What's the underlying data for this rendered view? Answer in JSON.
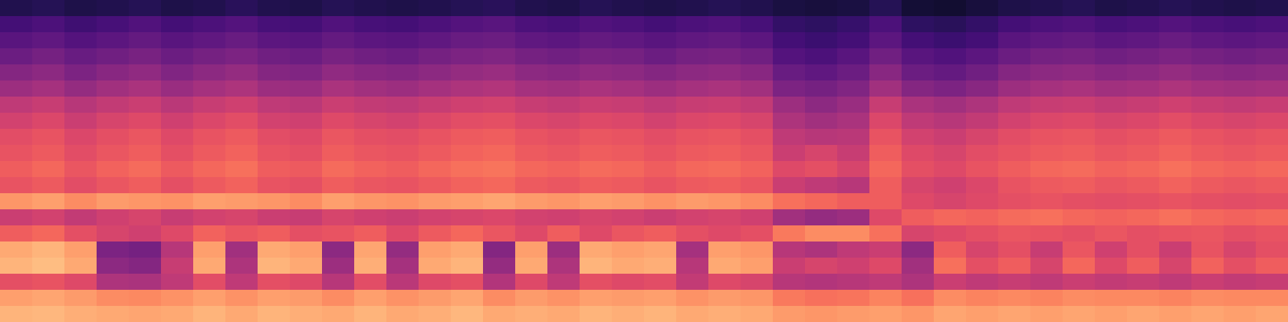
{
  "chart_data": {
    "type": "heatmap",
    "tick_labels": false,
    "zlim": [
      0,
      100
    ],
    "cells": [
      [
        14,
        15,
        13,
        14,
        15,
        13,
        14,
        16,
        14,
        13,
        15,
        14,
        13,
        14,
        15,
        16,
        14,
        13,
        15,
        14,
        13,
        14,
        15,
        14,
        12,
        11,
        12,
        15,
        10,
        9,
        11,
        13,
        14,
        15,
        13,
        14,
        15,
        14,
        13,
        14
      ],
      [
        22,
        24,
        21,
        23,
        25,
        22,
        24,
        26,
        23,
        22,
        25,
        23,
        22,
        24,
        26,
        27,
        24,
        23,
        25,
        24,
        22,
        24,
        25,
        23,
        18,
        17,
        19,
        24,
        17,
        16,
        18,
        22,
        24,
        25,
        23,
        24,
        26,
        24,
        23,
        24
      ],
      [
        27,
        29,
        26,
        28,
        30,
        27,
        29,
        31,
        28,
        27,
        30,
        28,
        27,
        29,
        31,
        32,
        29,
        28,
        30,
        29,
        27,
        29,
        30,
        28,
        22,
        20,
        22,
        28,
        22,
        20,
        22,
        27,
        29,
        30,
        28,
        29,
        31,
        29,
        28,
        29
      ],
      [
        32,
        34,
        31,
        33,
        35,
        32,
        34,
        36,
        33,
        32,
        35,
        33,
        32,
        34,
        36,
        37,
        34,
        33,
        35,
        34,
        32,
        34,
        35,
        33,
        26,
        24,
        27,
        33,
        27,
        25,
        28,
        32,
        34,
        35,
        33,
        34,
        36,
        34,
        33,
        34
      ],
      [
        38,
        40,
        36,
        39,
        41,
        37,
        40,
        42,
        38,
        37,
        41,
        39,
        38,
        40,
        42,
        43,
        40,
        39,
        41,
        40,
        38,
        40,
        41,
        39,
        31,
        29,
        32,
        39,
        32,
        30,
        33,
        38,
        40,
        41,
        39,
        40,
        42,
        40,
        39,
        40
      ],
      [
        44,
        46,
        42,
        45,
        47,
        43,
        46,
        48,
        44,
        43,
        47,
        45,
        44,
        46,
        48,
        49,
        46,
        45,
        47,
        46,
        44,
        46,
        47,
        45,
        36,
        34,
        37,
        45,
        38,
        36,
        39,
        44,
        46,
        47,
        45,
        46,
        48,
        46,
        45,
        46
      ],
      [
        52,
        54,
        50,
        53,
        55,
        51,
        54,
        56,
        52,
        51,
        55,
        53,
        52,
        54,
        56,
        57,
        54,
        53,
        55,
        54,
        52,
        54,
        55,
        53,
        44,
        40,
        43,
        54,
        47,
        45,
        48,
        52,
        54,
        55,
        53,
        54,
        56,
        54,
        53,
        54
      ],
      [
        57,
        59,
        55,
        58,
        60,
        56,
        59,
        61,
        57,
        56,
        60,
        58,
        57,
        59,
        61,
        62,
        59,
        58,
        60,
        59,
        57,
        59,
        60,
        58,
        48,
        45,
        47,
        59,
        52,
        50,
        53,
        57,
        59,
        60,
        58,
        59,
        61,
        59,
        58,
        59
      ],
      [
        61,
        63,
        59,
        62,
        64,
        60,
        63,
        65,
        61,
        60,
        64,
        62,
        61,
        63,
        65,
        66,
        63,
        62,
        64,
        63,
        61,
        63,
        64,
        62,
        52,
        50,
        51,
        63,
        57,
        55,
        58,
        61,
        63,
        64,
        62,
        63,
        65,
        63,
        62,
        63
      ],
      [
        63,
        65,
        61,
        64,
        66,
        62,
        65,
        67,
        63,
        62,
        66,
        64,
        63,
        65,
        67,
        68,
        65,
        64,
        66,
        65,
        63,
        65,
        66,
        64,
        55,
        58,
        54,
        66,
        60,
        58,
        61,
        63,
        65,
        66,
        64,
        65,
        67,
        65,
        64,
        65
      ],
      [
        66,
        68,
        64,
        67,
        69,
        65,
        68,
        70,
        66,
        65,
        69,
        67,
        66,
        68,
        70,
        71,
        68,
        67,
        69,
        68,
        66,
        68,
        69,
        67,
        60,
        62,
        58,
        68,
        62,
        60,
        63,
        66,
        68,
        69,
        67,
        68,
        70,
        68,
        67,
        68
      ],
      [
        63,
        65,
        61,
        64,
        66,
        62,
        65,
        67,
        63,
        62,
        66,
        64,
        63,
        65,
        67,
        68,
        65,
        64,
        66,
        65,
        63,
        65,
        66,
        64,
        55,
        52,
        50,
        66,
        58,
        56,
        59,
        63,
        65,
        66,
        64,
        65,
        67,
        65,
        64,
        65
      ],
      [
        78,
        80,
        76,
        79,
        78,
        77,
        80,
        79,
        78,
        76,
        80,
        78,
        77,
        79,
        80,
        81,
        79,
        78,
        80,
        79,
        77,
        79,
        78,
        76,
        70,
        68,
        66,
        66,
        60,
        58,
        60,
        62,
        63,
        62,
        61,
        62,
        63,
        62,
        61,
        62
      ],
      [
        55,
        57,
        53,
        56,
        58,
        54,
        57,
        58,
        55,
        54,
        58,
        56,
        55,
        57,
        58,
        59,
        57,
        56,
        58,
        57,
        55,
        57,
        58,
        56,
        45,
        42,
        44,
        60,
        66,
        68,
        67,
        69,
        70,
        68,
        67,
        68,
        70,
        68,
        67,
        68
      ],
      [
        66,
        68,
        62,
        58,
        56,
        60,
        67,
        64,
        66,
        62,
        63,
        66,
        60,
        65,
        68,
        64,
        60,
        66,
        60,
        64,
        66,
        62,
        60,
        62,
        72,
        76,
        76,
        70,
        58,
        60,
        62,
        64,
        63,
        62,
        64,
        62,
        63,
        64,
        62,
        63
      ],
      [
        82,
        84,
        80,
        36,
        34,
        50,
        80,
        45,
        82,
        80,
        40,
        81,
        42,
        80,
        82,
        38,
        80,
        44,
        82,
        80,
        81,
        46,
        80,
        78,
        50,
        48,
        52,
        55,
        40,
        66,
        58,
        62,
        54,
        64,
        56,
        62,
        55,
        63,
        58,
        62
      ],
      [
        84,
        86,
        82,
        40,
        38,
        54,
        82,
        48,
        84,
        82,
        44,
        83,
        46,
        82,
        84,
        42,
        82,
        48,
        84,
        82,
        83,
        50,
        82,
        80,
        55,
        58,
        56,
        60,
        45,
        70,
        62,
        66,
        58,
        68,
        60,
        66,
        58,
        67,
        62,
        66
      ],
      [
        62,
        63,
        60,
        48,
        47,
        52,
        61,
        52,
        62,
        60,
        50,
        61,
        51,
        60,
        62,
        49,
        60,
        52,
        62,
        60,
        61,
        53,
        60,
        58,
        50,
        49,
        50,
        52,
        48,
        55,
        52,
        54,
        52,
        55,
        53,
        54,
        52,
        55,
        53,
        54
      ],
      [
        80,
        81,
        79,
        76,
        75,
        77,
        80,
        77,
        80,
        79,
        76,
        80,
        77,
        79,
        81,
        76,
        79,
        77,
        80,
        79,
        80,
        77,
        79,
        78,
        72,
        70,
        71,
        74,
        70,
        76,
        74,
        75,
        74,
        76,
        75,
        75,
        74,
        76,
        75,
        75
      ],
      [
        84,
        85,
        83,
        82,
        81,
        82,
        84,
        82,
        84,
        83,
        82,
        84,
        82,
        83,
        85,
        82,
        83,
        82,
        84,
        83,
        84,
        82,
        83,
        82,
        79,
        78,
        79,
        80,
        78,
        81,
        80,
        81,
        80,
        81,
        80,
        81,
        80,
        81,
        80,
        81
      ]
    ]
  }
}
